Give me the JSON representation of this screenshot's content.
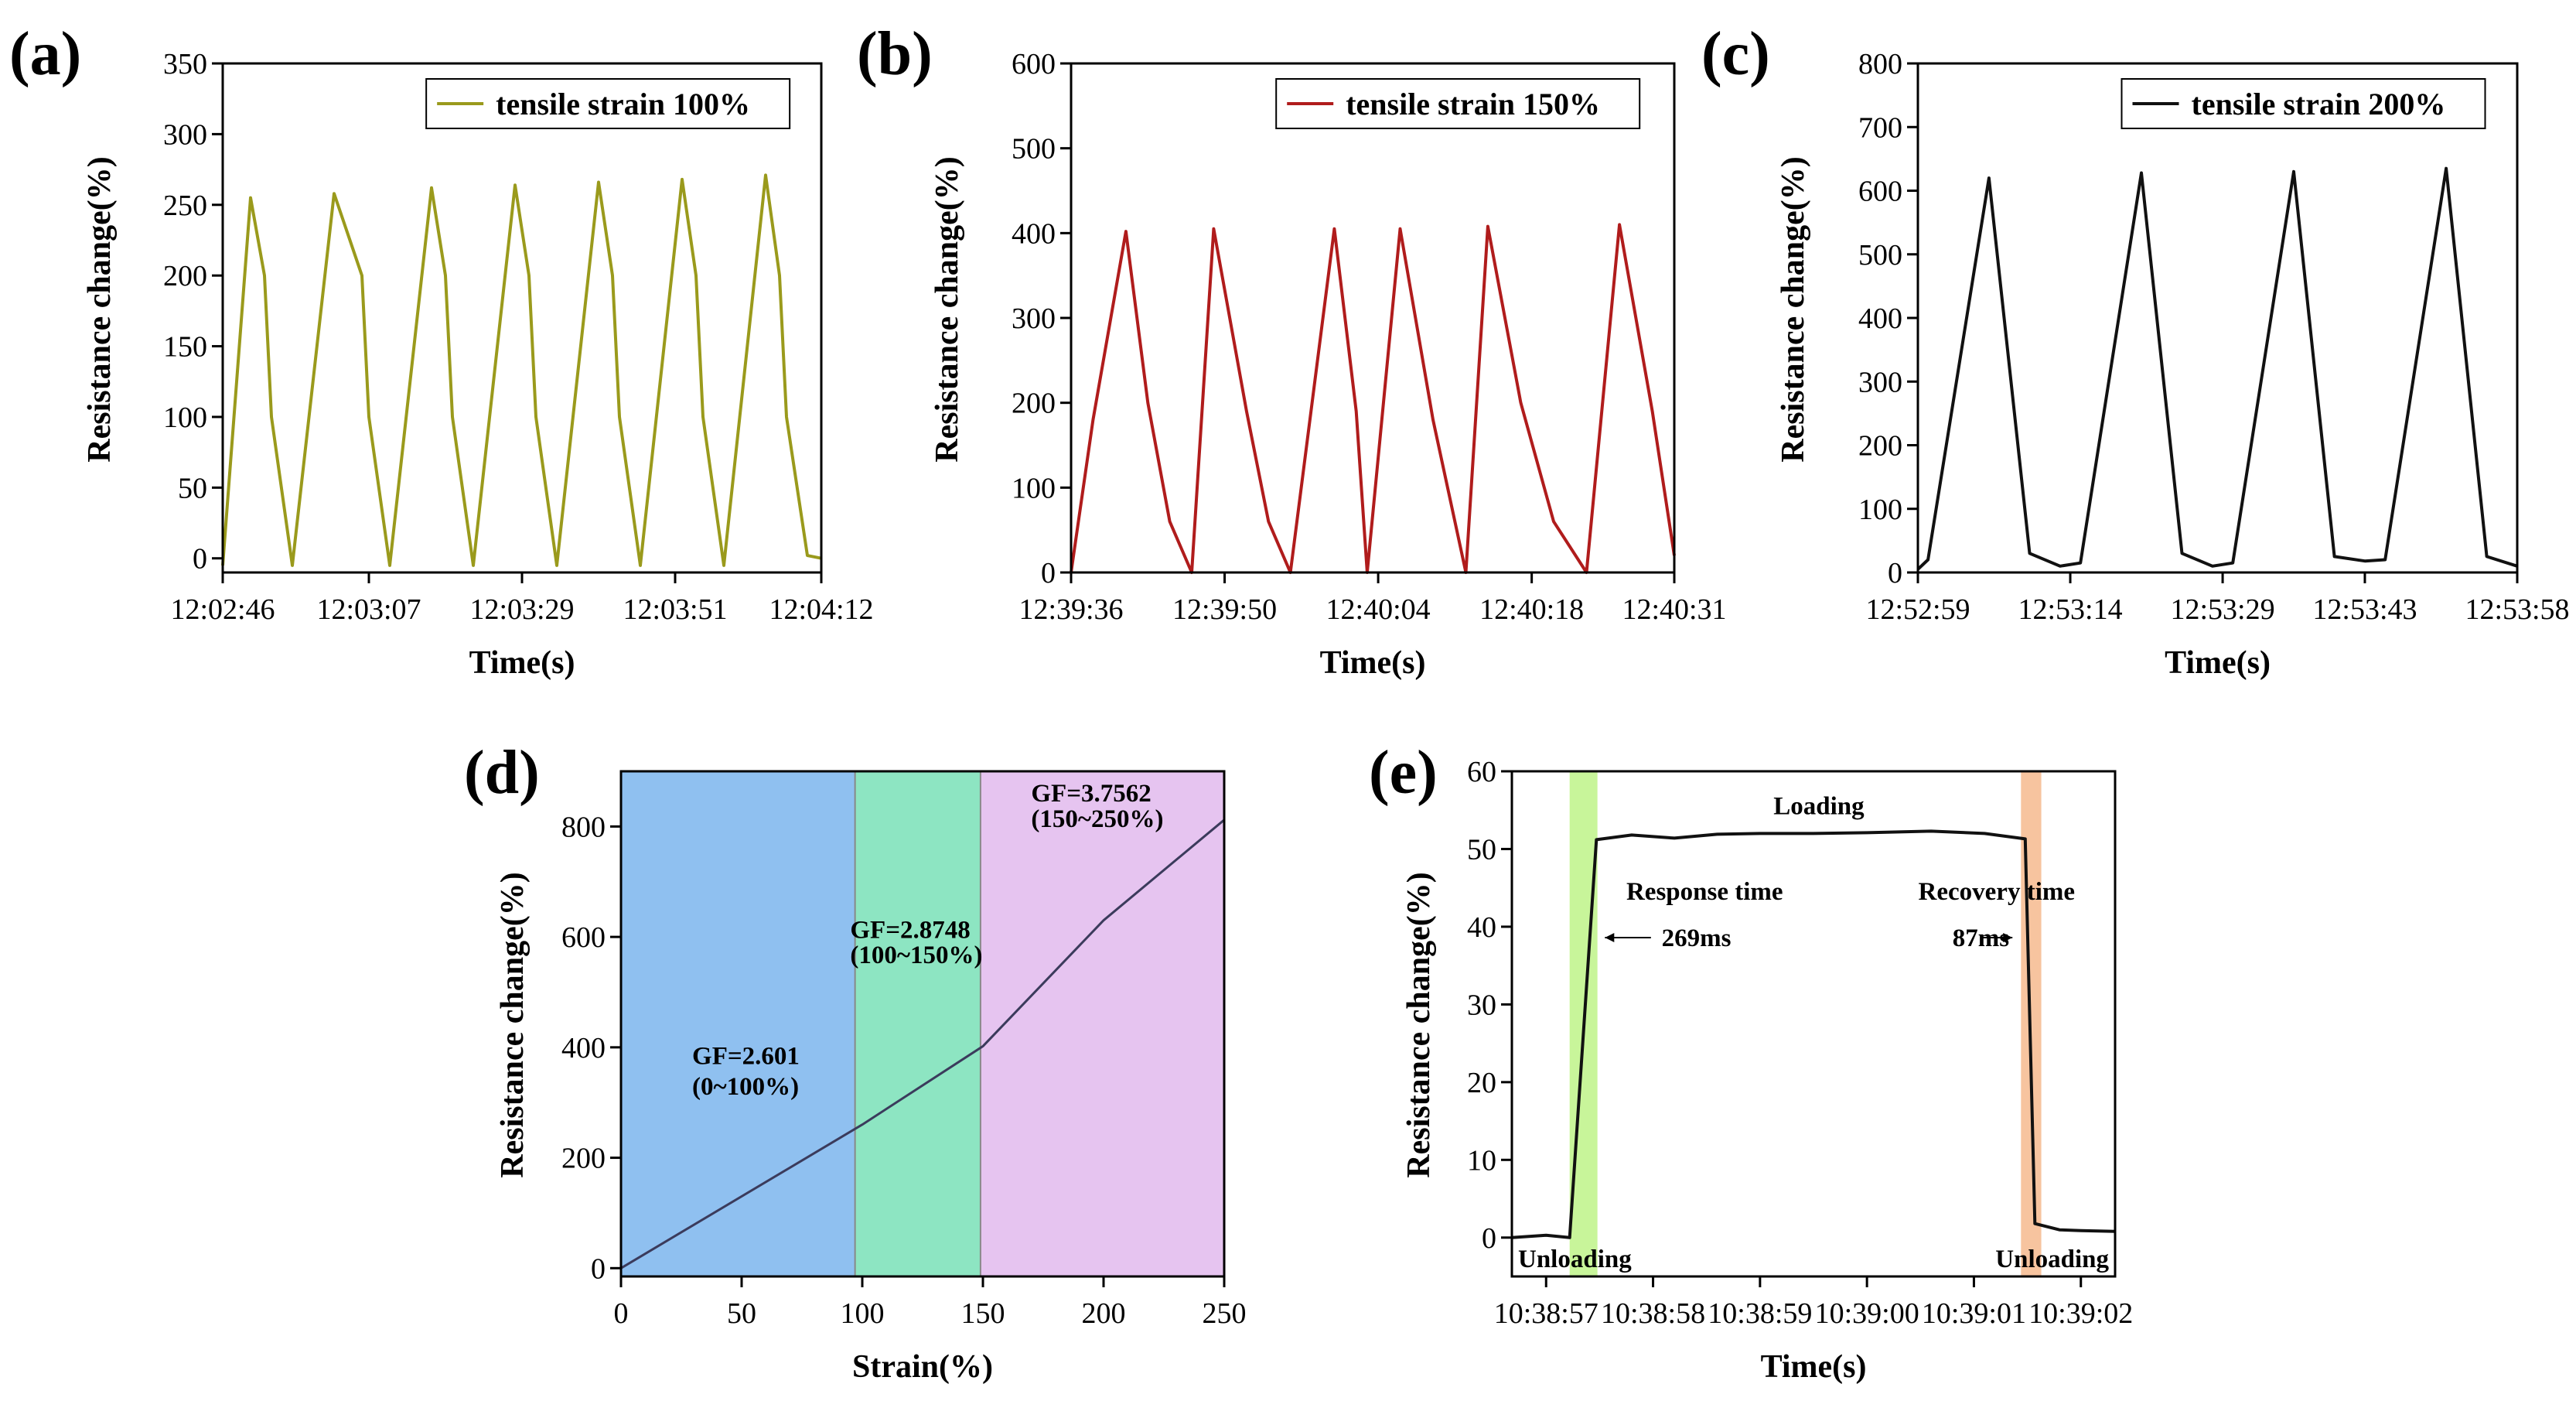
{
  "chart_data": [
    {
      "panel": "(a)",
      "type": "line",
      "xlabel": "Time(s)",
      "ylabel": "Resistance change(%)",
      "x_ticks": [
        "12:02:46",
        "12:03:07",
        "12:03:29",
        "12:03:51",
        "12:04:12"
      ],
      "y_ticks": [
        "0",
        "50",
        "100",
        "150",
        "200",
        "250",
        "300",
        "350"
      ],
      "ylim": [
        -10,
        350
      ],
      "legend": "top-right",
      "color": "#9a9a1c",
      "series": [
        {
          "name": "tensile strain 100%",
          "x": [
            "12:02:46",
            "12:02:50",
            "12:02:52",
            "12:02:53",
            "12:02:56",
            "12:03:02",
            "12:03:06",
            "12:03:07",
            "12:03:10",
            "12:03:16",
            "12:03:18",
            "12:03:19",
            "12:03:22",
            "12:03:28",
            "12:03:30",
            "12:03:31",
            "12:03:34",
            "12:03:40",
            "12:03:42",
            "12:03:43",
            "12:03:46",
            "12:03:52",
            "12:03:54",
            "12:03:55",
            "12:03:58",
            "12:04:04",
            "12:04:06",
            "12:04:07",
            "12:04:10",
            "12:04:12"
          ],
          "y": [
            -5,
            255,
            200,
            100,
            -5,
            258,
            200,
            100,
            -5,
            262,
            200,
            100,
            -5,
            264,
            200,
            100,
            -5,
            266,
            200,
            100,
            -5,
            268,
            200,
            100,
            -5,
            271,
            200,
            100,
            2,
            0
          ]
        }
      ]
    },
    {
      "panel": "(b)",
      "type": "line",
      "xlabel": "Time(s)",
      "ylabel": "Resistance change(%)",
      "x_ticks": [
        "12:39:36",
        "12:39:50",
        "12:40:04",
        "12:40:18",
        "12:40:31"
      ],
      "y_ticks": [
        "0",
        "100",
        "200",
        "300",
        "400",
        "500",
        "600"
      ],
      "ylim": [
        0,
        600
      ],
      "legend": "top-right",
      "color": "#b01c1c",
      "series": [
        {
          "name": "tensile strain 150%",
          "x": [
            "12:39:36",
            "12:39:38",
            "12:39:41",
            "12:39:43",
            "12:39:45",
            "12:39:47",
            "12:39:49",
            "12:39:52",
            "12:39:54",
            "12:39:56",
            "12:40:00",
            "12:40:02",
            "12:40:03",
            "12:40:06",
            "12:40:09",
            "12:40:12",
            "12:40:14",
            "12:40:17",
            "12:40:20",
            "12:40:23",
            "12:40:26",
            "12:40:29",
            "12:40:31"
          ],
          "y": [
            0,
            180,
            402,
            200,
            60,
            0,
            405,
            190,
            60,
            0,
            405,
            190,
            0,
            405,
            180,
            0,
            408,
            200,
            60,
            0,
            410,
            190,
            20
          ]
        }
      ]
    },
    {
      "panel": "(c)",
      "type": "line",
      "xlabel": "Time(s)",
      "ylabel": "Resistance change(%)",
      "x_ticks": [
        "12:52:59",
        "12:53:14",
        "12:53:29",
        "12:53:43",
        "12:53:58"
      ],
      "y_ticks": [
        "0",
        "100",
        "200",
        "300",
        "400",
        "500",
        "600",
        "700",
        "800"
      ],
      "ylim": [
        0,
        800
      ],
      "legend": "top-right",
      "color": "#111111",
      "series": [
        {
          "name": "tensile strain 200%",
          "x": [
            "12:52:59",
            "12:53:00",
            "12:53:06",
            "12:53:10",
            "12:53:13",
            "12:53:15",
            "12:53:21",
            "12:53:25",
            "12:53:28",
            "12:53:30",
            "12:53:36",
            "12:53:40",
            "12:53:43",
            "12:53:45",
            "12:53:51",
            "12:53:55",
            "12:53:58"
          ],
          "y": [
            5,
            20,
            620,
            30,
            10,
            15,
            628,
            30,
            10,
            15,
            630,
            25,
            18,
            20,
            635,
            25,
            10
          ]
        }
      ]
    },
    {
      "panel": "(d)",
      "type": "line",
      "xlabel": "Strain(%)",
      "ylabel": "Resistance change(%)",
      "x_ticks": [
        "0",
        "50",
        "100",
        "150",
        "200",
        "250"
      ],
      "y_ticks": [
        "0",
        "200",
        "400",
        "600",
        "800"
      ],
      "xlim": [
        0,
        250
      ],
      "ylim": [
        -15,
        900
      ],
      "color": "#3b3b5c",
      "regions": [
        {
          "x0": 0,
          "x1": 97,
          "color": "#8fc0f0",
          "label1": "GF=2.601",
          "label2": "(0~100%)"
        },
        {
          "x0": 97,
          "x1": 149,
          "color": "#8de5c2",
          "label1": "GF=2.8748",
          "label2": "(100~150%)"
        },
        {
          "x0": 149,
          "x1": 250,
          "color": "#e6c4f0",
          "label1": "GF=3.7562",
          "label2": "(150~250%)"
        }
      ],
      "series": [
        {
          "x": [
            0,
            100,
            150,
            200,
            250
          ],
          "y": [
            0,
            260,
            402,
            630,
            812
          ]
        }
      ]
    },
    {
      "panel": "(e)",
      "type": "line",
      "xlabel": "Time(s)",
      "ylabel": "Resistance change(%)",
      "x_ticks": [
        "10:38:57",
        "10:38:58",
        "10:38:59",
        "10:39:00",
        "10:39:01",
        "10:39:02"
      ],
      "y_ticks": [
        "0",
        "10",
        "20",
        "30",
        "40",
        "50",
        "60"
      ],
      "ylim": [
        -5,
        60
      ],
      "color": "#111111",
      "highlights": [
        {
          "x0": 0.22,
          "x1": 0.48,
          "color": "#c8f59a"
        },
        {
          "x0": 4.44,
          "x1": 4.63,
          "color": "#f7c49f"
        }
      ],
      "annotations": {
        "loading": "Loading",
        "unloading_left": "Unloading",
        "unloading_right": "Unloading",
        "response_title": "Response time",
        "response_value": "269ms",
        "recovery_title": "Recovery time",
        "recovery_value": "87ms"
      },
      "series": [
        {
          "x": [
            -0.32,
            0.0,
            0.22,
            0.47,
            0.8,
            1.2,
            1.6,
            2.0,
            2.5,
            3.0,
            3.6,
            4.1,
            4.48,
            4.57,
            4.8,
            5.0,
            5.32
          ],
          "y": [
            0,
            0.3,
            0,
            51.2,
            51.8,
            51.4,
            51.9,
            52.0,
            52.0,
            52.1,
            52.3,
            52.0,
            51.3,
            1.8,
            1.0,
            0.9,
            0.8
          ]
        }
      ]
    }
  ]
}
